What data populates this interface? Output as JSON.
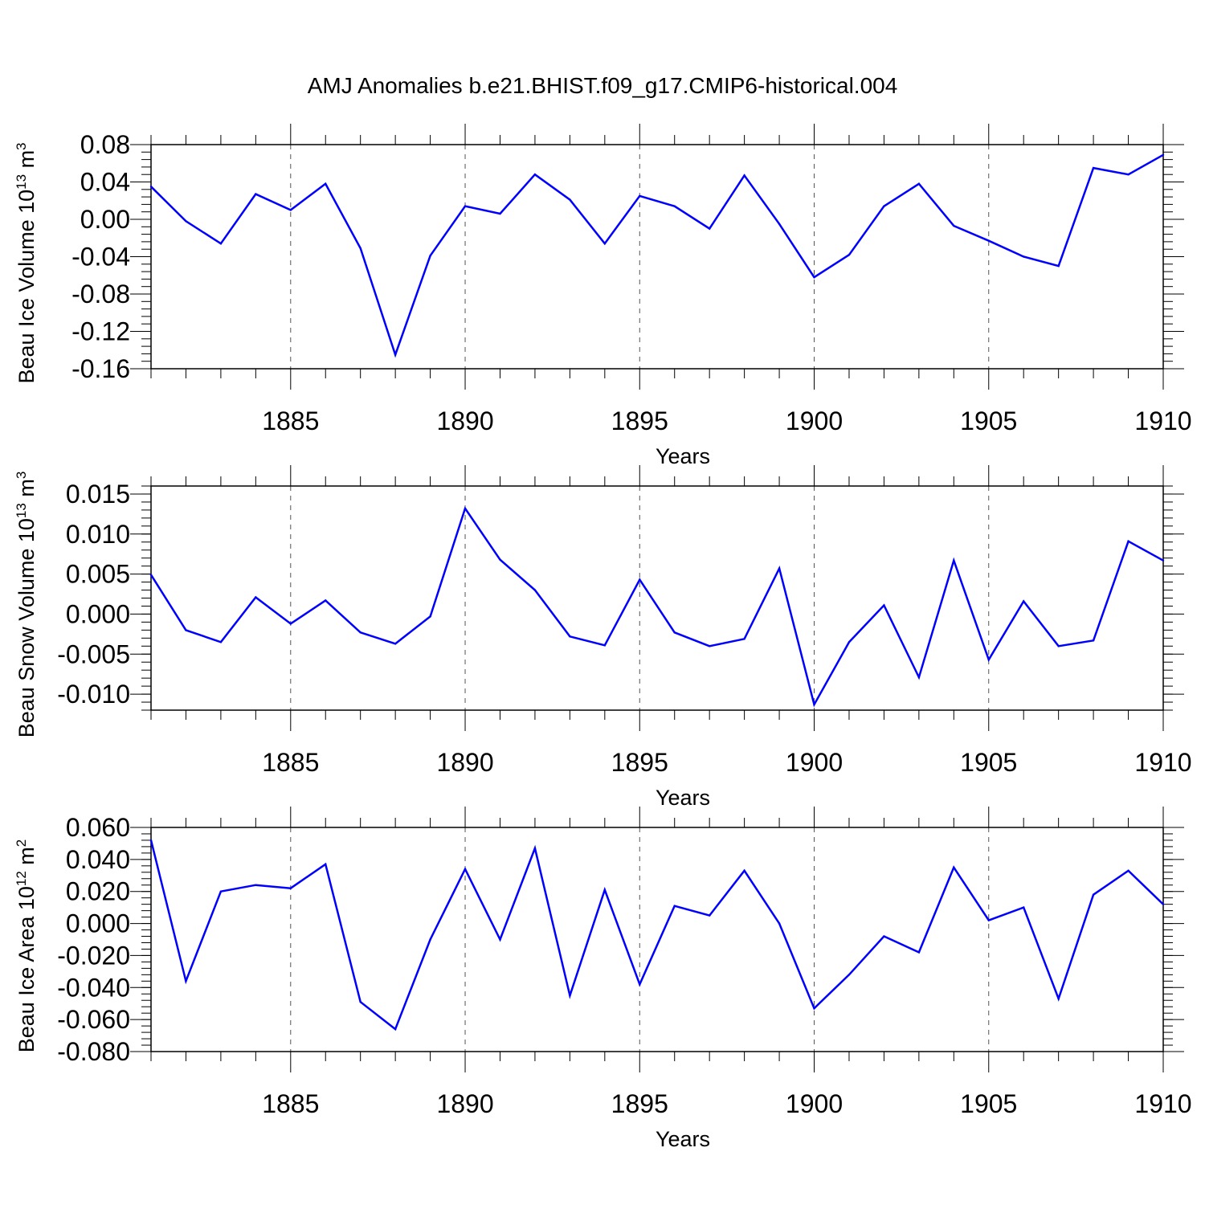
{
  "title": "AMJ Anomalies b.e21.BHIST.f09_g17.CMIP6-historical.004",
  "line_color": "#0000ff",
  "chart_data": [
    {
      "type": "line",
      "xlabel": "Years",
      "ylabel": {
        "main": "Beau Ice Volume 10",
        "exp": "13",
        "unit": " m",
        "unit_exp": "3"
      },
      "xlim": [
        1881,
        1910
      ],
      "ylim": [
        -0.16,
        0.08
      ],
      "xticks": [
        1885,
        1890,
        1895,
        1900,
        1905,
        1910
      ],
      "yticks": [
        -0.16,
        -0.12,
        -0.08,
        -0.04,
        0.0,
        0.04,
        0.08
      ],
      "ytick_labels": [
        "-0.16",
        "-0.12",
        "-0.08",
        "-0.04",
        "0.00",
        "0.04",
        "0.08"
      ],
      "yminor_step": 0.008,
      "x": [
        1881,
        1882,
        1883,
        1884,
        1885,
        1886,
        1887,
        1888,
        1889,
        1890,
        1891,
        1892,
        1893,
        1894,
        1895,
        1896,
        1897,
        1898,
        1899,
        1900,
        1901,
        1902,
        1903,
        1904,
        1905,
        1906,
        1907,
        1908,
        1909,
        1910
      ],
      "values": [
        0.035,
        -0.002,
        -0.026,
        0.027,
        0.01,
        0.038,
        -0.031,
        -0.145,
        -0.039,
        0.014,
        0.006,
        0.048,
        0.021,
        -0.026,
        0.025,
        0.014,
        -0.01,
        0.047,
        -0.005,
        -0.062,
        -0.038,
        0.014,
        0.038,
        -0.007,
        -0.023,
        -0.04,
        -0.05,
        0.055,
        0.048,
        0.069
      ]
    },
    {
      "type": "line",
      "xlabel": "Years",
      "ylabel": {
        "main": "Beau Snow Volume 10",
        "exp": "13",
        "unit": " m",
        "unit_exp": "3"
      },
      "xlim": [
        1881,
        1910
      ],
      "ylim": [
        -0.012,
        0.016
      ],
      "xticks": [
        1885,
        1890,
        1895,
        1900,
        1905,
        1910
      ],
      "yticks": [
        -0.01,
        -0.005,
        0.0,
        0.005,
        0.01,
        0.015
      ],
      "ytick_labels": [
        "-0.010",
        "-0.005",
        "0.000",
        "0.005",
        "0.010",
        "0.015"
      ],
      "yminor_step": 0.001,
      "x": [
        1881,
        1882,
        1883,
        1884,
        1885,
        1886,
        1887,
        1888,
        1889,
        1890,
        1891,
        1892,
        1893,
        1894,
        1895,
        1896,
        1897,
        1898,
        1899,
        1900,
        1901,
        1902,
        1903,
        1904,
        1905,
        1906,
        1907,
        1908,
        1909,
        1910
      ],
      "values": [
        0.0049,
        -0.002,
        -0.0035,
        0.0021,
        -0.0012,
        0.0017,
        -0.0023,
        -0.0037,
        -0.0003,
        0.0132,
        0.0068,
        0.003,
        -0.0028,
        -0.0039,
        0.0043,
        -0.0023,
        -0.004,
        -0.0031,
        0.0057,
        -0.0113,
        -0.0035,
        0.0011,
        -0.0079,
        0.0067,
        -0.0057,
        0.0016,
        -0.004,
        -0.0033,
        0.0091,
        0.0067
      ]
    },
    {
      "type": "line",
      "xlabel": "Years",
      "ylabel": {
        "main": "Beau Ice Area 10",
        "exp": "12",
        "unit": " m",
        "unit_exp": "2"
      },
      "xlim": [
        1881,
        1910
      ],
      "ylim": [
        -0.08,
        0.06
      ],
      "xticks": [
        1885,
        1890,
        1895,
        1900,
        1905,
        1910
      ],
      "yticks": [
        -0.08,
        -0.06,
        -0.04,
        -0.02,
        0.0,
        0.02,
        0.04,
        0.06
      ],
      "ytick_labels": [
        "-0.080",
        "-0.060",
        "-0.040",
        "-0.020",
        "0.000",
        "0.020",
        "0.040",
        "0.060"
      ],
      "yminor_step": 0.004,
      "x": [
        1881,
        1882,
        1883,
        1884,
        1885,
        1886,
        1887,
        1888,
        1889,
        1890,
        1891,
        1892,
        1893,
        1894,
        1895,
        1896,
        1897,
        1898,
        1899,
        1900,
        1901,
        1902,
        1903,
        1904,
        1905,
        1906,
        1907,
        1908,
        1909,
        1910
      ],
      "values": [
        0.052,
        -0.036,
        0.02,
        0.024,
        0.022,
        0.037,
        -0.049,
        -0.066,
        -0.01,
        0.034,
        -0.01,
        0.047,
        -0.045,
        0.021,
        -0.038,
        0.011,
        0.005,
        0.033,
        0.0,
        -0.053,
        -0.032,
        -0.008,
        -0.018,
        0.035,
        0.002,
        0.01,
        -0.047,
        0.018,
        0.033,
        0.012
      ]
    }
  ]
}
